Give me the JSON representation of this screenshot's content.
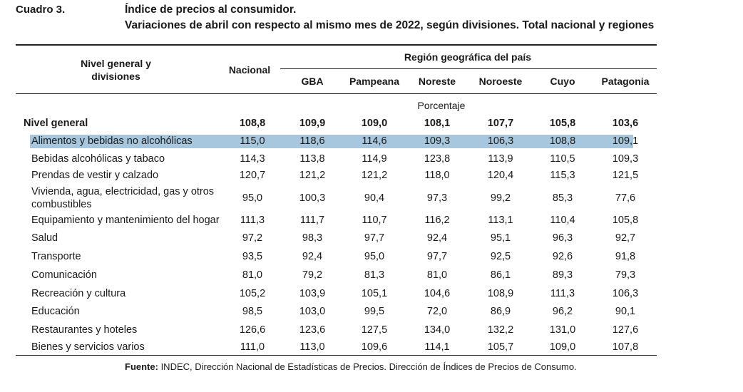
{
  "header": {
    "cuadro": "Cuadro 3.",
    "title_line1": "Índice de precios al consumidor.",
    "title_line2": "Variaciones de abril con respecto al mismo mes de 2022, según divisiones. Total nacional y regiones"
  },
  "table": {
    "first_col_header_line1": "Nivel general y",
    "first_col_header_line2": "divisiones",
    "nacional_header": "Nacional",
    "region_group_header": "Región geográfica del país",
    "region_headers": [
      "GBA",
      "Pampeana",
      "Noreste",
      "Noroeste",
      "Cuyo",
      "Patagonia"
    ],
    "unit_label": "Porcentaje",
    "rows": [
      {
        "label": "Nivel general",
        "values": [
          "108,8",
          "109,9",
          "109,0",
          "108,1",
          "107,7",
          "105,8",
          "103,6"
        ]
      },
      {
        "label": "Alimentos y bebidas no alcohólicas",
        "values": [
          "115,0",
          "118,6",
          "114,6",
          "109,3",
          "106,3",
          "108,8",
          "109,1"
        ]
      },
      {
        "label": "Bebidas alcohólicas y tabaco",
        "values": [
          "114,3",
          "113,8",
          "114,9",
          "123,8",
          "113,9",
          "110,5",
          "109,3"
        ]
      },
      {
        "label": "Prendas de vestir y calzado",
        "values": [
          "120,7",
          "121,2",
          "121,2",
          "118,0",
          "120,4",
          "115,3",
          "121,5"
        ]
      },
      {
        "label": "Vivienda, agua, electricidad, gas y otros",
        "label2": "combustibles",
        "values": [
          "95,0",
          "100,3",
          "90,4",
          "97,3",
          "99,2",
          "85,3",
          "77,6"
        ]
      },
      {
        "label": "Equipamiento y mantenimiento del hogar",
        "values": [
          "111,3",
          "111,7",
          "110,7",
          "116,2",
          "113,1",
          "110,4",
          "105,8"
        ]
      },
      {
        "label": "Salud",
        "values": [
          "97,2",
          "98,3",
          "97,7",
          "92,4",
          "95,1",
          "96,3",
          "92,7"
        ]
      },
      {
        "label": "Transporte",
        "values": [
          "93,5",
          "92,4",
          "95,0",
          "97,7",
          "92,5",
          "92,6",
          "91,8"
        ]
      },
      {
        "label": "Comunicación",
        "values": [
          "81,0",
          "79,2",
          "81,3",
          "81,0",
          "86,1",
          "89,3",
          "79,3"
        ]
      },
      {
        "label": "Recreación y cultura",
        "values": [
          "105,2",
          "103,9",
          "105,1",
          "104,6",
          "108,9",
          "111,3",
          "106,3"
        ]
      },
      {
        "label": "Educación",
        "values": [
          "98,5",
          "103,0",
          "99,5",
          "72,0",
          "86,9",
          "96,2",
          "90,1"
        ]
      },
      {
        "label": "Restaurantes y hoteles",
        "values": [
          "126,6",
          "123,6",
          "127,5",
          "134,0",
          "132,2",
          "131,0",
          "127,6"
        ]
      },
      {
        "label": "Bienes y servicios varios",
        "values": [
          "111,0",
          "113,0",
          "109,6",
          "114,1",
          "105,7",
          "109,0",
          "107,8"
        ]
      }
    ]
  },
  "footer": {
    "source_label": "Fuente:",
    "source_text": " INDEC, Dirección Nacional de Estadísticas de Precios. Dirección de Índices de Precios de Consumo."
  }
}
